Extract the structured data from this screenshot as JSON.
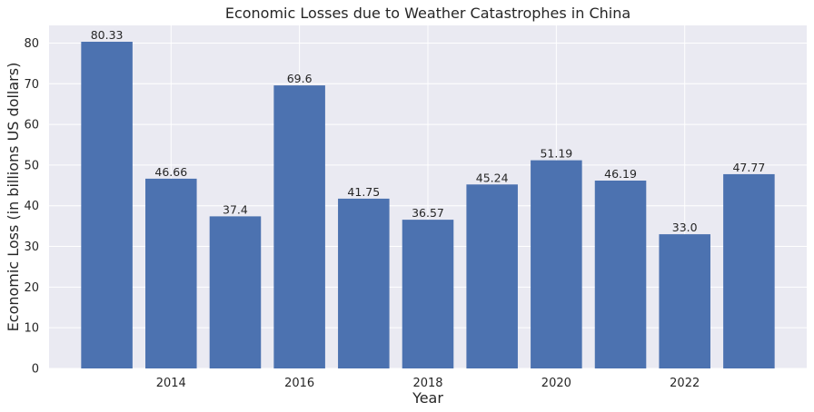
{
  "chart_data": {
    "type": "bar",
    "title": "Economic Losses due to Weather Catastrophes in China",
    "xlabel": "Year",
    "ylabel": "Economic Loss (in billions US dollars)",
    "x": [
      2013,
      2014,
      2015,
      2016,
      2017,
      2018,
      2019,
      2020,
      2021,
      2022,
      2023
    ],
    "values": [
      80.33,
      46.66,
      37.4,
      69.6,
      41.75,
      36.57,
      45.24,
      51.19,
      46.19,
      33.0,
      47.77
    ],
    "data_labels": [
      "80.33",
      "46.66",
      "37.4",
      "69.6",
      "41.75",
      "36.57",
      "45.24",
      "51.19",
      "46.19",
      "33.0",
      "47.77"
    ],
    "x_ticks": [
      2014,
      2016,
      2018,
      2020,
      2022
    ],
    "x_tick_labels": [
      "2014",
      "2016",
      "2018",
      "2020",
      "2022"
    ],
    "y_ticks": [
      0,
      10,
      20,
      30,
      40,
      50,
      60,
      70,
      80
    ],
    "y_tick_labels": [
      "0",
      "10",
      "20",
      "30",
      "40",
      "50",
      "60",
      "70",
      "80"
    ],
    "ylim": [
      0,
      84.35
    ],
    "xlim": [
      2012.1,
      2023.9
    ],
    "grid": true,
    "colors": {
      "bar": "#4c72b0",
      "plot_background": "#eaeaf2",
      "grid": "#ffffff"
    }
  }
}
